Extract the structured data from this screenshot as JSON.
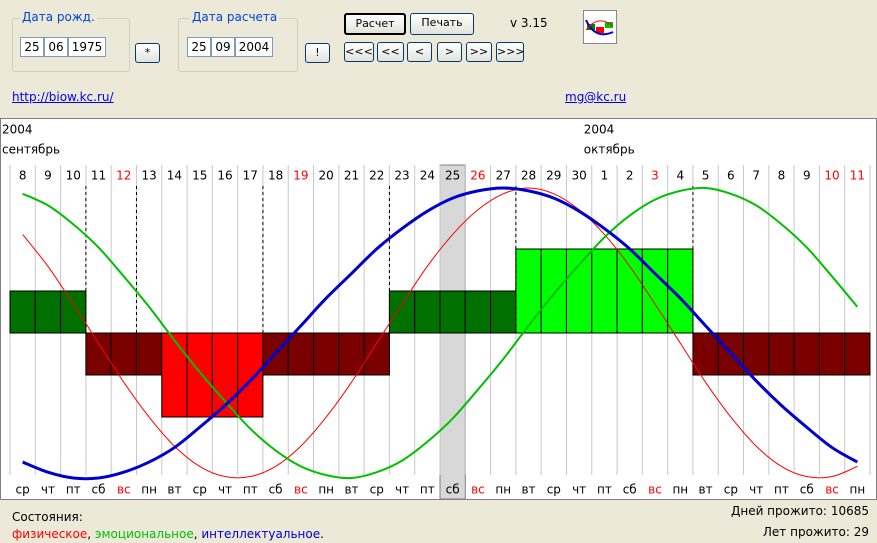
{
  "birth_date": {
    "label": "Дата рожд.",
    "day": "25",
    "month": "06",
    "year": "1975",
    "button": "*"
  },
  "calc_date": {
    "label": "Дата расчета",
    "day": "25",
    "month": "09",
    "year": "2004",
    "button": "!"
  },
  "buttons": [
    "Расчет",
    "Печать"
  ],
  "version": "v 3.15",
  "nav": [
    "<<<",
    "<<",
    "<",
    ">",
    ">>",
    ">>>"
  ],
  "links": [
    "http://biow.kc.ru/",
    "mg@kc.ru"
  ],
  "chart_data": {
    "type": "biorhythm",
    "months": [
      {
        "year": "2004",
        "name": "сентябрь"
      },
      {
        "year": "2004",
        "name": "октябрь"
      }
    ],
    "days": [
      "8",
      "9",
      "10",
      "11",
      "12",
      "13",
      "14",
      "15",
      "16",
      "17",
      "18",
      "19",
      "20",
      "21",
      "22",
      "23",
      "24",
      "25",
      "26",
      "27",
      "28",
      "29",
      "30",
      "1",
      "2",
      "3",
      "4",
      "5",
      "6",
      "7",
      "8",
      "9",
      "10",
      "11"
    ],
    "day_holiday": [
      false,
      false,
      false,
      false,
      true,
      false,
      false,
      false,
      false,
      false,
      false,
      true,
      false,
      false,
      false,
      false,
      false,
      false,
      true,
      false,
      false,
      false,
      false,
      false,
      false,
      true,
      false,
      false,
      false,
      false,
      false,
      false,
      true,
      true
    ],
    "weekdays": [
      "ср",
      "чт",
      "пт",
      "сб",
      "вс",
      "пн",
      "вт",
      "ср",
      "чт",
      "пт",
      "сб",
      "вс",
      "пн",
      "вт",
      "ср",
      "чт",
      "пт",
      "сб",
      "вс",
      "пн",
      "вт",
      "ср",
      "чт",
      "пт",
      "сб",
      "вс",
      "пн",
      "вт",
      "ср",
      "чт",
      "пт",
      "сб",
      "вс",
      "пн"
    ],
    "weekday_holiday": [
      false,
      false,
      false,
      false,
      true,
      false,
      false,
      false,
      false,
      false,
      false,
      true,
      false,
      false,
      false,
      false,
      false,
      false,
      true,
      false,
      false,
      false,
      false,
      false,
      false,
      true,
      false,
      false,
      false,
      false,
      false,
      false,
      true,
      false
    ],
    "critical": [
      false,
      false,
      false,
      true,
      false,
      true,
      false,
      false,
      false,
      false,
      true,
      false,
      false,
      false,
      false,
      true,
      false,
      false,
      false,
      false,
      true,
      false,
      false,
      false,
      false,
      false,
      false,
      true,
      false,
      false,
      false,
      false,
      false,
      false
    ],
    "states": [
      1,
      1,
      1,
      -1,
      -1,
      -1,
      -2,
      -2,
      -2,
      -2,
      -1,
      -1,
      -1,
      -1,
      -1,
      1,
      1,
      1,
      1,
      1,
      2,
      2,
      2,
      2,
      2,
      2,
      2,
      -1,
      -1,
      -1,
      -1,
      -1,
      -1,
      -1
    ],
    "state_colors": {
      "-2": "#ff0000",
      "-1": "#7a0000",
      "1": "#007000",
      "2": "#00ff00"
    },
    "ylim": [
      -1,
      1
    ],
    "series": [
      {
        "name": "физическое",
        "color": "#ff0000",
        "values": [
          0.68,
          0.46,
          0.2,
          -0.07,
          -0.34,
          -0.58,
          -0.78,
          -0.92,
          -0.99,
          -0.99,
          -0.92,
          -0.78,
          -0.58,
          -0.34,
          -0.07,
          0.2,
          0.46,
          0.68,
          0.85,
          0.96,
          1,
          0.96,
          0.85,
          0.68,
          0.46,
          0.2,
          -0.07,
          -0.34,
          -0.58,
          -0.78,
          -0.92,
          -0.99,
          -0.99,
          -0.92
        ]
      },
      {
        "name": "эмоциональное",
        "color": "#00c000",
        "values": [
          0.96,
          0.88,
          0.75,
          0.59,
          0.39,
          0.18,
          -0.05,
          -0.27,
          -0.47,
          -0.66,
          -0.81,
          -0.92,
          -0.98,
          -1,
          -0.96,
          -0.88,
          -0.75,
          -0.59,
          -0.39,
          -0.18,
          0.05,
          0.27,
          0.47,
          0.66,
          0.81,
          0.92,
          0.98,
          1,
          0.96,
          0.88,
          0.75,
          0.59,
          0.39,
          0.18
        ]
      },
      {
        "name": "интеллектуальное",
        "color": "#0000cc",
        "values": [
          -0.89,
          -0.96,
          -1,
          -1,
          -0.96,
          -0.89,
          -0.79,
          -0.65,
          -0.5,
          -0.33,
          -0.14,
          0.05,
          0.24,
          0.41,
          0.58,
          0.72,
          0.84,
          0.93,
          0.98,
          1,
          0.98,
          0.93,
          0.84,
          0.72,
          0.58,
          0.41,
          0.24,
          0.05,
          -0.14,
          -0.33,
          -0.5,
          -0.65,
          -0.79,
          -0.89
        ]
      }
    ],
    "legend_title": "Состояния:",
    "legend_separator": ", ",
    "legend_end": ".",
    "days_lived_label": "Дней прожито:",
    "days_lived": 10685,
    "years_lived_label": "Лет прожито:",
    "years_lived": 29
  }
}
